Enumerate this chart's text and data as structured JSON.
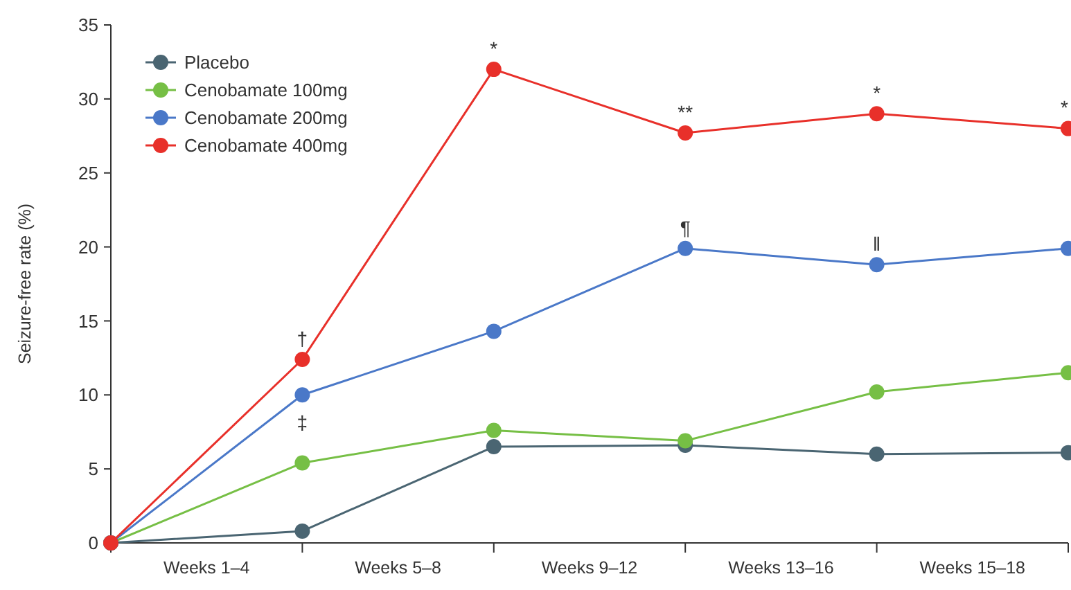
{
  "chart_data": {
    "type": "line",
    "ylabel": "Seizure-free rate (%)",
    "categories": [
      null,
      "Weeks 1–4",
      null,
      "Weeks 5–8",
      null,
      "Weeks 9–12",
      null,
      "Weeks 13–16",
      null,
      "Weeks 15–18",
      null
    ],
    "ylim": [
      0,
      35
    ],
    "yticks": [
      0,
      5,
      10,
      15,
      20,
      25,
      30,
      35
    ],
    "series": [
      {
        "name": "Placebo",
        "color": "#4a6572",
        "values": [
          0,
          null,
          0.8,
          null,
          6.5,
          null,
          6.6,
          null,
          6.0,
          null,
          6.1
        ]
      },
      {
        "name": "Cenobamate 100mg",
        "color": "#76bf45",
        "values": [
          0,
          null,
          5.4,
          null,
          7.6,
          null,
          6.9,
          null,
          10.2,
          null,
          11.5
        ]
      },
      {
        "name": "Cenobamate 200mg",
        "color": "#4a78c8",
        "values": [
          0,
          null,
          10.0,
          null,
          14.3,
          null,
          19.9,
          null,
          18.8,
          null,
          19.9
        ],
        "value_labels": [
          null,
          null,
          "‡",
          null,
          null,
          null,
          "¶",
          null,
          "‖",
          null,
          null
        ]
      },
      {
        "name": "Cenobamate 400mg",
        "color": "#e8302a",
        "values": [
          0,
          null,
          12.4,
          null,
          32.0,
          null,
          27.7,
          null,
          29.0,
          null,
          28.0
        ],
        "value_labels": [
          null,
          null,
          "†",
          null,
          "*",
          null,
          "**",
          null,
          "*",
          null,
          "*"
        ]
      }
    ],
    "marker": "circle",
    "line_style": "solid",
    "grid": false,
    "legend": "top left"
  }
}
